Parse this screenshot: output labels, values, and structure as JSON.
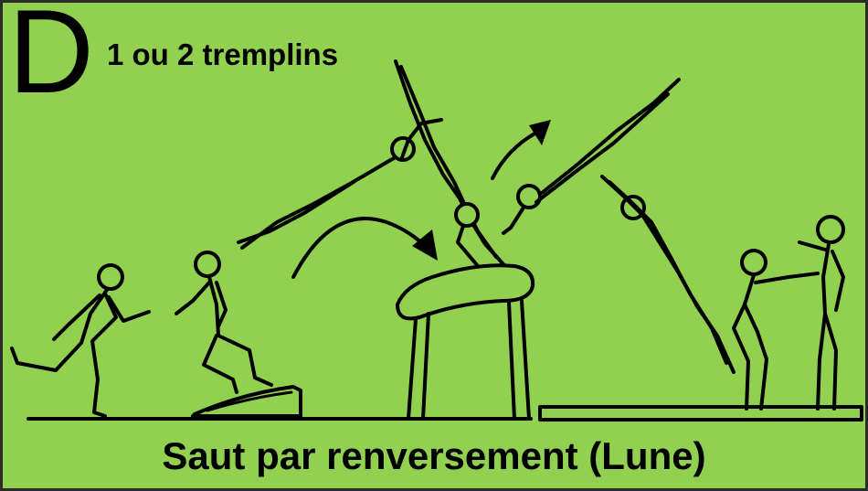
{
  "card": {
    "letter": "D",
    "subtitle": "1 ou 2 tremplins",
    "caption": "Saut par renversement (Lune)"
  },
  "colors": {
    "background": "#92d050",
    "ink": "#000000",
    "border": "#2b2b2b"
  }
}
